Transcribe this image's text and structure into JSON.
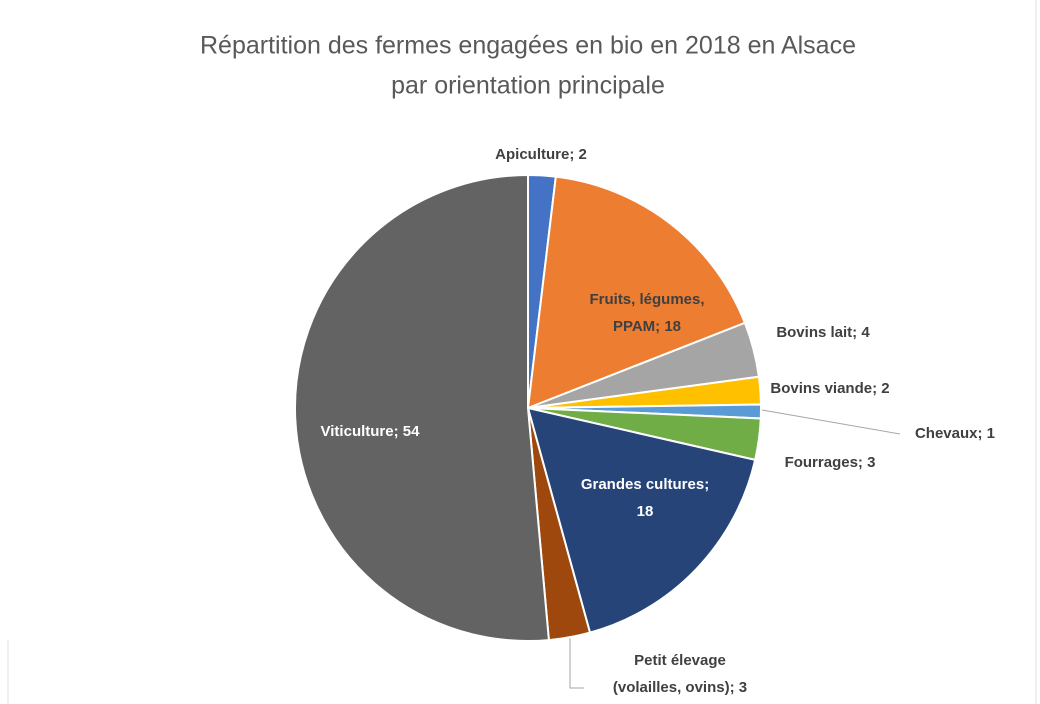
{
  "chart_data": {
    "type": "pie",
    "title": [
      "Répartition des fermes engagées en bio en 2018 en Alsace",
      "par orientation principale"
    ],
    "values": [
      2,
      18,
      4,
      2,
      1,
      3,
      18,
      3,
      54
    ],
    "value_labels": [
      [
        "Apiculture; 2"
      ],
      [
        "Fruits, légumes,",
        "PPAM; 18"
      ],
      [
        "Bovins lait; 4"
      ],
      [
        "Bovins viande; 2"
      ],
      [
        "Chevaux; 1"
      ],
      [
        "Fourrages; 3"
      ],
      [
        "Grandes cultures;",
        "18"
      ],
      [
        "Petit élevage",
        "(volailles, ovins); 3"
      ],
      [
        "Viticulture; 54"
      ]
    ],
    "colors": [
      "#4472c4",
      "#ed7d31",
      "#a5a5a5",
      "#ffc000",
      "#5b9bd5",
      "#70ad47",
      "#264478",
      "#9e480e",
      "#636363"
    ]
  }
}
